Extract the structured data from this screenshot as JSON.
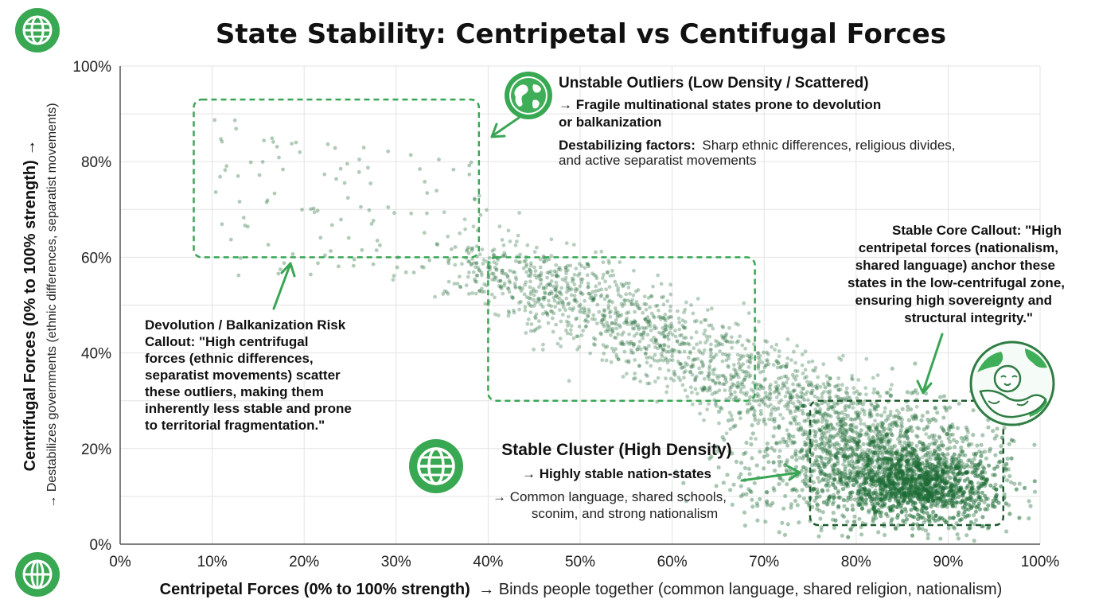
{
  "chart_data": {
    "type": "scatter",
    "title": "State Stability: Centripetal vs Centifugal Forces",
    "xlabel": "Centripetal Forces (0% to 100% strength)",
    "xlabel_suffix": "→ Binds people together (common language, shared religion, nationalism)",
    "ylabel": "Centrifugal Forces (0% to 100% strength) →",
    "ylabel_sub": "→ Destabilizes governments (ethnic differences, separatist movements)",
    "xlim": [
      0,
      100
    ],
    "ylim": [
      0,
      100
    ],
    "x_ticks": [
      "0%",
      "10%",
      "20%",
      "30%",
      "40%",
      "50%",
      "60%",
      "70%",
      "80%",
      "90%",
      "100%"
    ],
    "y_ticks": [
      "0%",
      "20%",
      "40%",
      "60%",
      "80%",
      "100%"
    ],
    "grid": true,
    "point_color": "#1e6b35",
    "accent_color": "#3aa655",
    "clusters": [
      {
        "name": "stable-core",
        "center_x": 87,
        "center_y": 12,
        "spread_x": 4,
        "spread_y": 3.5,
        "count": 900
      },
      {
        "name": "stable-cluster",
        "center_x": 82,
        "center_y": 17,
        "spread_x": 7,
        "spread_y": 7,
        "count": 1300
      },
      {
        "name": "transition-band",
        "start": [
          40,
          60
        ],
        "end": [
          85,
          20
        ],
        "width": 4,
        "count": 1700
      },
      {
        "name": "outliers",
        "x_range": [
          10,
          40
        ],
        "y_range": [
          56,
          90
        ],
        "count": 110
      }
    ],
    "regions": [
      {
        "name": "unstable-outliers",
        "x": [
          8,
          39
        ],
        "y": [
          60,
          93
        ]
      },
      {
        "name": "transition",
        "x": [
          40,
          69
        ],
        "y": [
          30,
          60
        ]
      },
      {
        "name": "stable-core",
        "x": [
          75,
          96
        ],
        "y": [
          4,
          30
        ]
      }
    ],
    "annotations": {
      "outliers": {
        "title": "Unstable Outliers (Low Density / Scattered)",
        "line1": "→ Fragile multinational states prone to devolution",
        "line2": "or balkanization",
        "factors_label": "Destabilizing factors:",
        "factors_text": "Sharp ethnic differences, religious divides,",
        "factors_text2": "and active separatist movements"
      },
      "core": {
        "lines": [
          "Stable Core Callout: \"High",
          "centripetal forces (nationalism,",
          "shared language) anchor these",
          "states in the low-centrifugal zone,",
          "ensuring high sovereignty and",
          "structural integrity.\""
        ]
      },
      "devolution": {
        "lines": [
          "Devolution / Balkanization Risk",
          "Callout: \"High centrifugal",
          "forces (ethnic differences,",
          "separatist movements) scatter",
          "these outliers, making them",
          "inherently less stable and prone",
          "to territorial fragmentation.\""
        ]
      },
      "cluster": {
        "title": "Stable Cluster (High Density)",
        "line1": "→ Highly stable nation-states",
        "line2": "→ Common language, shared schools,",
        "line3": "sconim, and strong nationalism"
      }
    },
    "icons": [
      "globe-icon",
      "globe-icon",
      "globe-icon",
      "globe-hug-icon"
    ]
  }
}
